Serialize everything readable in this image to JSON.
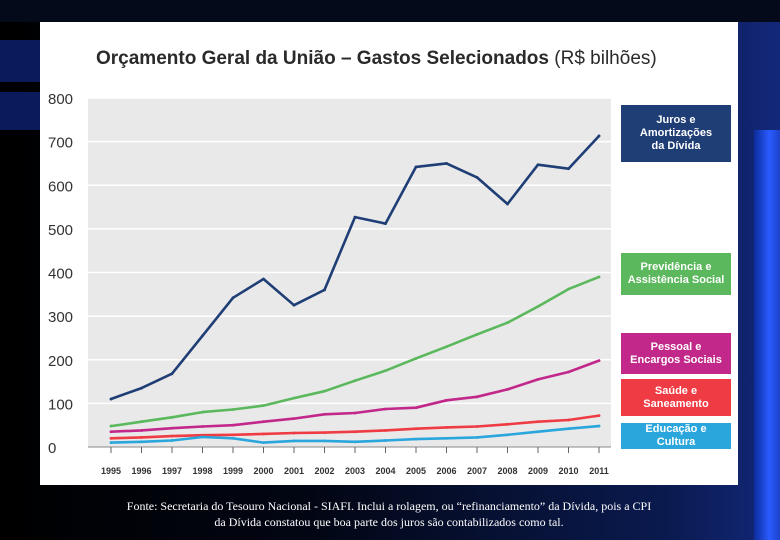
{
  "chart_data": {
    "type": "line",
    "title": "Orçamento Geral da União – Gastos Selecionados",
    "title_unit": "(R$ bilhões)",
    "x": [
      "1995",
      "1996",
      "1997",
      "1998",
      "1999",
      "2000",
      "2001",
      "2002",
      "2003",
      "2004",
      "2005",
      "2006",
      "2007",
      "2008",
      "2009",
      "2010",
      "2011"
    ],
    "ylim": [
      0,
      800
    ],
    "yticks": [
      "0",
      "100",
      "200",
      "300",
      "400",
      "500",
      "600",
      "700",
      "800"
    ],
    "series": [
      {
        "name": "Juros e Amortizações da Dívida",
        "color": "#1f3e75",
        "values": [
          110,
          135,
          168,
          255,
          342,
          385,
          325,
          360,
          527,
          512,
          642,
          650,
          618,
          557,
          647,
          638,
          713
        ]
      },
      {
        "name": "Previdência e Assistência Social",
        "color": "#5cb85c",
        "values": [
          48,
          58,
          68,
          80,
          86,
          95,
          112,
          128,
          152,
          175,
          203,
          230,
          258,
          285,
          322,
          362,
          390
        ]
      },
      {
        "name": "Pessoal e Encargos Sociais",
        "color": "#c2288a",
        "values": [
          35,
          38,
          43,
          47,
          50,
          58,
          65,
          75,
          78,
          87,
          90,
          107,
          115,
          132,
          155,
          172,
          198
        ]
      },
      {
        "name": "Saúde e Saneamento",
        "color": "#ef3b43",
        "values": [
          20,
          22,
          25,
          27,
          28,
          30,
          32,
          33,
          35,
          38,
          42,
          45,
          47,
          52,
          58,
          62,
          72
        ]
      },
      {
        "name": "Educação e Cultura",
        "color": "#2aa6dc",
        "values": [
          10,
          12,
          15,
          23,
          20,
          10,
          14,
          14,
          12,
          15,
          18,
          20,
          22,
          28,
          35,
          42,
          48
        ]
      }
    ]
  },
  "legend": {
    "juros": {
      "line1": "Juros e",
      "line2": "Amortizações",
      "line3": "da Dívida"
    },
    "previdencia": {
      "line1": "Previdência e",
      "line2": "Assistência Social"
    },
    "pessoal": {
      "line1": "Pessoal e",
      "line2": "Encargos Sociais"
    },
    "saude": {
      "line1": "Saúde e",
      "line2": "Saneamento"
    },
    "educacao": {
      "line1": "Educação e Cultura"
    }
  },
  "footnote": {
    "line1": "Fonte: Secretaria do Tesouro Nacional - SIAFI. Inclui a rolagem, ou “refinanciamento” da Dívida, pois a CPI",
    "line2": "da Dívida constatou que boa parte dos juros são contabilizados como tal."
  }
}
